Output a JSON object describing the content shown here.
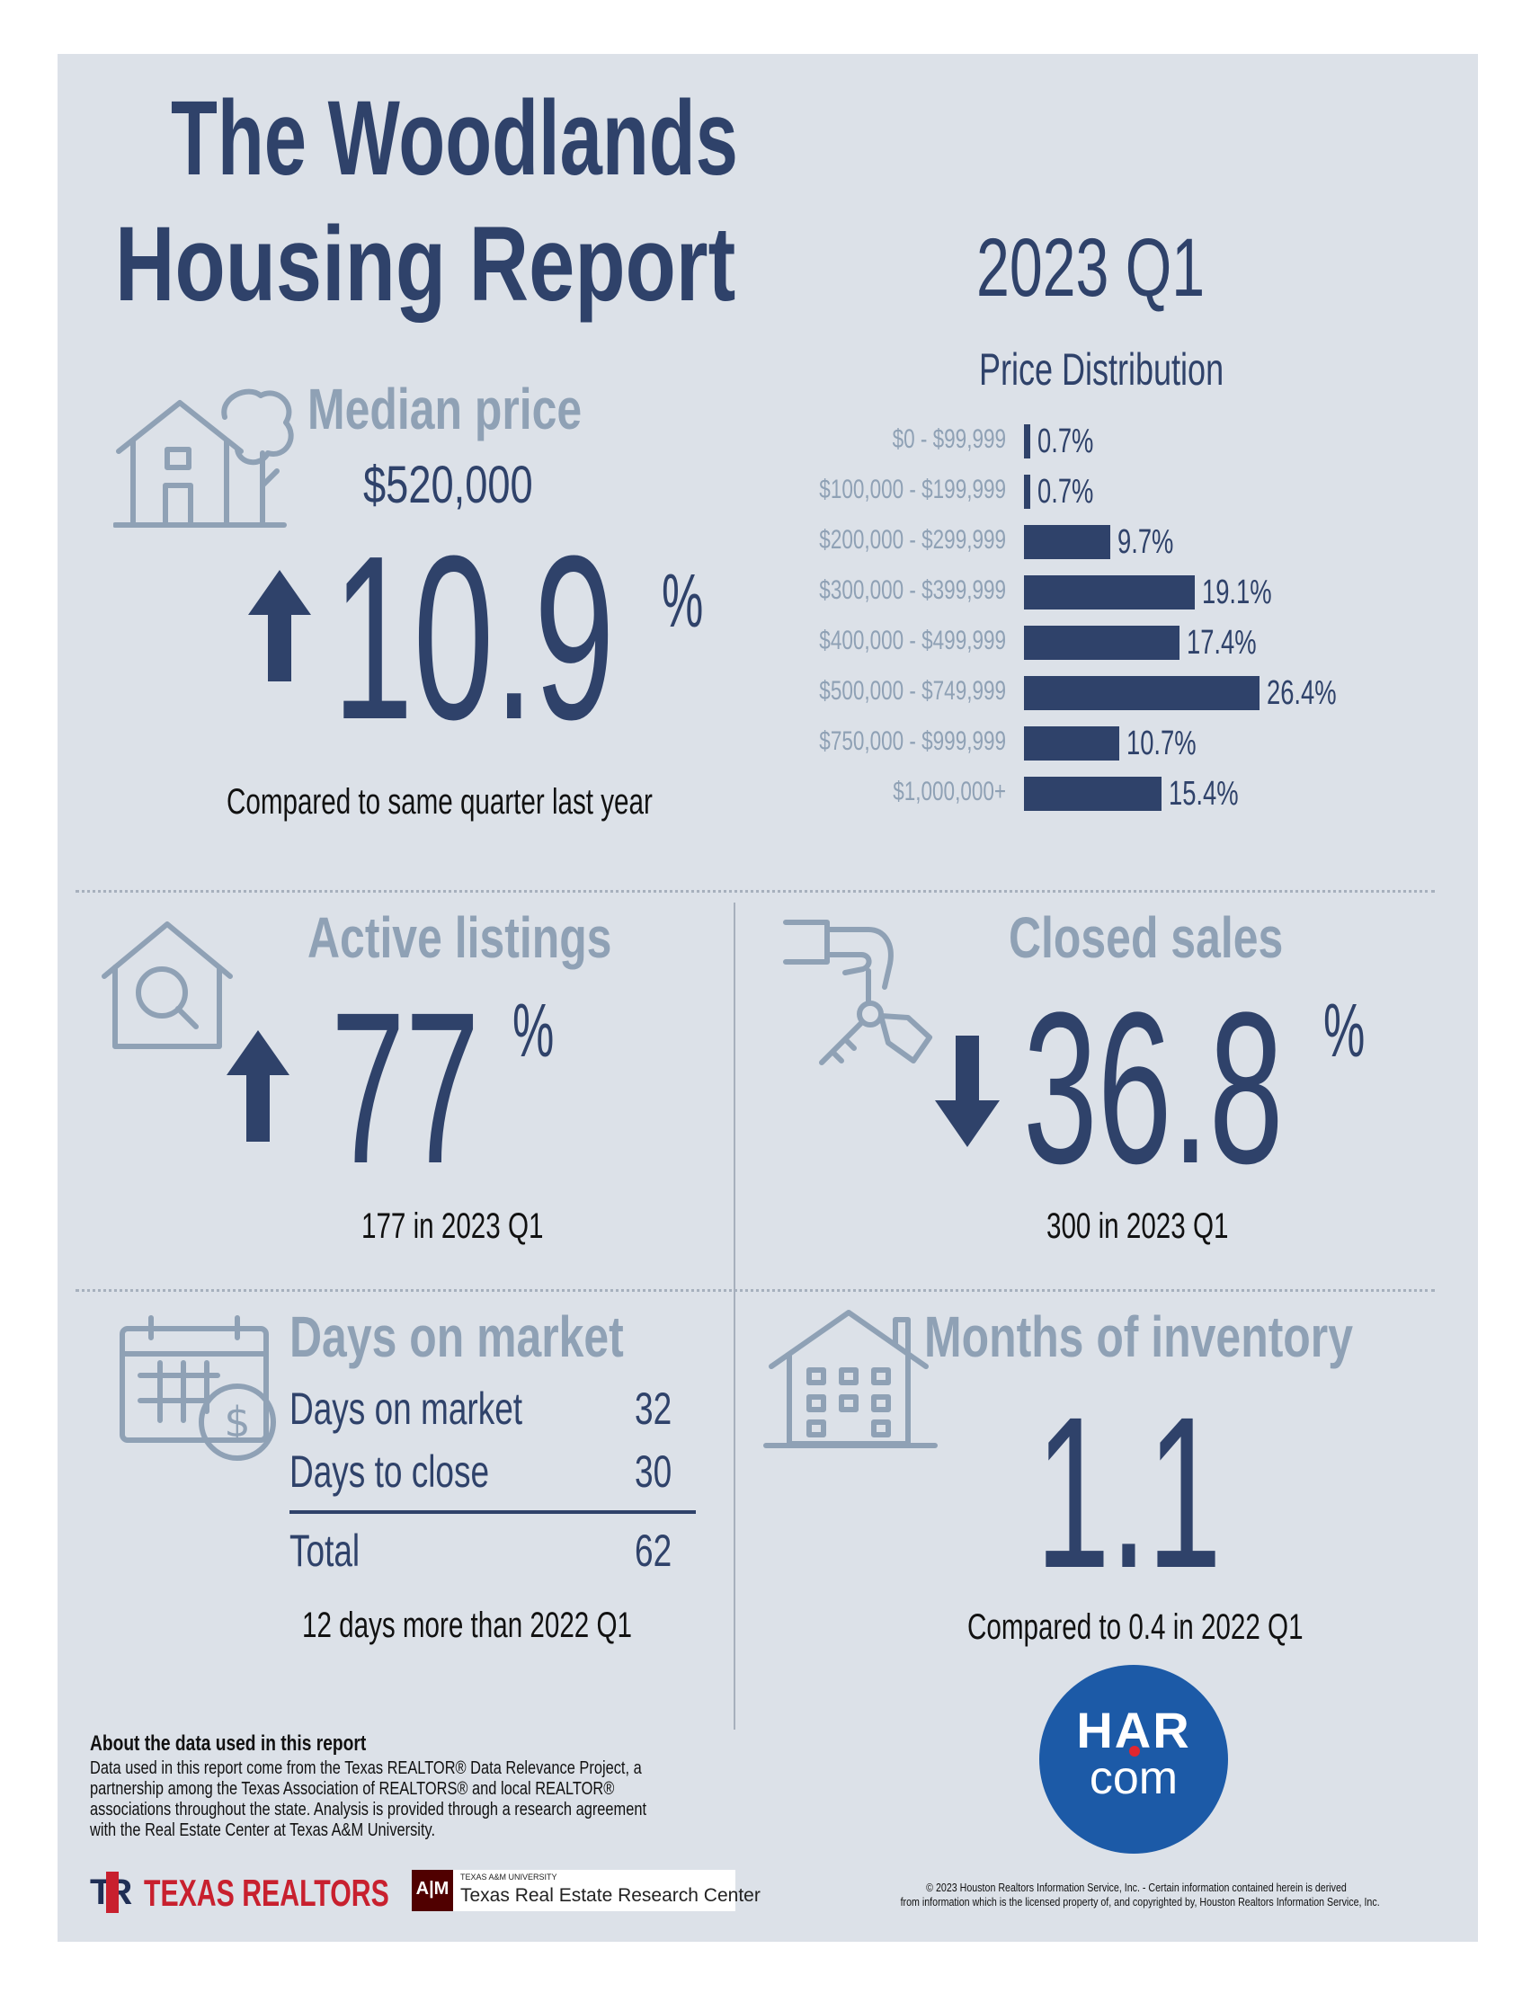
{
  "header": {
    "title_line1": "The Woodlands",
    "title_line2": "Housing Report",
    "period": "2023 Q1"
  },
  "median_price": {
    "label": "Median price",
    "value": "$520,000",
    "change": "10.9",
    "percent_sign": "%",
    "direction": "up",
    "note": "Compared to same quarter last year"
  },
  "chart_data": {
    "type": "bar",
    "title": "Price Distribution",
    "categories": [
      "$0 - $99,999",
      "$100,000 - $199,999",
      "$200,000 - $299,999",
      "$300,000 - $399,999",
      "$400,000 - $499,999",
      "$500,000 - $749,999",
      "$750,000 - $999,999",
      "$1,000,000+"
    ],
    "values": [
      0.7,
      0.7,
      9.7,
      19.1,
      17.4,
      26.4,
      10.7,
      15.4
    ],
    "labels": [
      "0.7%",
      "0.7%",
      "9.7%",
      "19.1%",
      "17.4%",
      "26.4%",
      "10.7%",
      "15.4%"
    ],
    "orientation": "horizontal",
    "xlim": [
      0,
      26.4
    ],
    "color": "#2f426a"
  },
  "active_listings": {
    "label": "Active listings",
    "change": "77",
    "percent_sign": "%",
    "direction": "up",
    "note": "177 in 2023 Q1"
  },
  "closed_sales": {
    "label": "Closed sales",
    "change": "36.8",
    "percent_sign": "%",
    "direction": "down",
    "note": "300 in 2023 Q1"
  },
  "days_on_market": {
    "label": "Days on market",
    "rows": [
      {
        "name": "Days on market",
        "value": "32"
      },
      {
        "name": "Days to close",
        "value": "30"
      }
    ],
    "total": {
      "name": "Total",
      "value": "62"
    },
    "note": "12 days more than 2022 Q1"
  },
  "months_inventory": {
    "label": "Months of inventory",
    "value": "1.1",
    "note": "Compared to 0.4 in 2022 Q1"
  },
  "about": {
    "title": "About the data used in this report",
    "lines": [
      "Data used in this report come from the Texas REALTOR® Data Relevance Project, a",
      "partnership among the Texas Association of REALTORS® and local REALTOR®",
      "associations throughout the state. Analysis is provided through a research agreement",
      "with the Real Estate Center at Texas A&M University."
    ]
  },
  "logos": {
    "har_top": "HAR",
    "har_bottom": "com",
    "texas_realtors": "TEXAS REALTORS",
    "tr_mark": "TR",
    "tamu_small": "TEXAS A&M UNIVERSITY",
    "tamu_center": "Texas Real Estate Research Center",
    "tamu_mark": "A|M"
  },
  "copyright": {
    "line1": "© 2023 Houston Realtors Information Service, Inc. - Certain information contained herein is derived",
    "line2": "from information which is the licensed property of, and copyrighted by, Houston Realtors Information Service, Inc."
  },
  "colors": {
    "navy": "#2f426a",
    "light": "#8fa1b5",
    "panel": "#dce1e8",
    "har_blue": "#1c5aa7",
    "texas_red": "#c8202e"
  }
}
